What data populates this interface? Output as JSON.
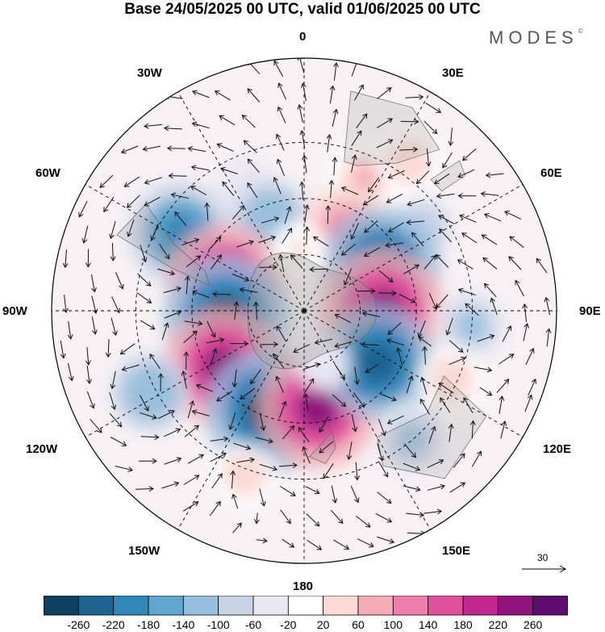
{
  "title": "Base 24/05/2025 00 UTC, valid 01/06/2025 00 UTC",
  "brand": "MODES",
  "brand_mark": "©",
  "longitude_labels": {
    "top": "0",
    "top_right": "30E",
    "upper_right": "60E",
    "right": "90E",
    "lower_right": "120E",
    "bottom_right": "150E",
    "bottom": "180",
    "bottom_left": "150W",
    "lower_left": "120W",
    "left": "90W",
    "upper_left": "60W",
    "top_left": "30W"
  },
  "reference_vector": {
    "label": "30"
  },
  "colorbar": {
    "colors": [
      "#0f3f60",
      "#1e6491",
      "#3187ba",
      "#62a5cd",
      "#98bfdd",
      "#c8d3e8",
      "#e9e7f1",
      "#ffffff",
      "#fbd9d5",
      "#f4adb6",
      "#ee7fac",
      "#e0519d",
      "#c1278f",
      "#92127e",
      "#5d0b6d"
    ],
    "ticks": [
      "-260",
      "-220",
      "-180",
      "-140",
      "-100",
      "-60",
      "-20",
      "20",
      "60",
      "100",
      "140",
      "180",
      "220",
      "260"
    ]
  },
  "anomalies": [
    {
      "lon": -25,
      "lat": -40,
      "value": -40
    },
    {
      "lon": 25,
      "lat": -38,
      "value": 90
    },
    {
      "lon": 35,
      "lat": -25,
      "value": 70
    },
    {
      "lon": 55,
      "lat": -38,
      "value": -70
    },
    {
      "lon": -58,
      "lat": -38,
      "value": -190
    },
    {
      "lon": -20,
      "lat": -55,
      "value": -110
    },
    {
      "lon": 28,
      "lat": -58,
      "value": 150
    },
    {
      "lon": 60,
      "lat": -58,
      "value": -230
    },
    {
      "lon": -70,
      "lat": -60,
      "value": 230
    },
    {
      "lon": -95,
      "lat": -62,
      "value": -250
    },
    {
      "lon": 90,
      "lat": -62,
      "value": 250
    },
    {
      "lon": 95,
      "lat": -30,
      "value": -90
    },
    {
      "lon": -125,
      "lat": -55,
      "value": 240
    },
    {
      "lon": -160,
      "lat": -52,
      "value": -250
    },
    {
      "lon": 172,
      "lat": -55,
      "value": 240
    },
    {
      "lon": 125,
      "lat": -58,
      "value": -220
    },
    {
      "lon": 115,
      "lat": -32,
      "value": 70
    },
    {
      "lon": -118,
      "lat": -28,
      "value": -110
    },
    {
      "lon": 140,
      "lat": -30,
      "value": -90
    },
    {
      "lon": -160,
      "lat": -28,
      "value": 60
    },
    {
      "lon": -5,
      "lat": -68,
      "value": 40
    },
    {
      "lon": 160,
      "lat": -70,
      "value": -40
    }
  ]
}
